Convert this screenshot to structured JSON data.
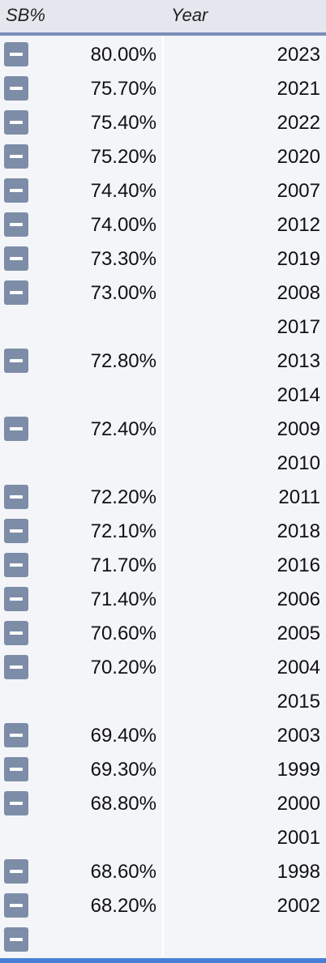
{
  "header": {
    "col_sb": "SB%",
    "col_year": "Year"
  },
  "rows": [
    {
      "pct": "80.00%",
      "year": "2023",
      "button": true
    },
    {
      "pct": "75.70%",
      "year": "2021",
      "button": true
    },
    {
      "pct": "75.40%",
      "year": "2022",
      "button": true
    },
    {
      "pct": "75.20%",
      "year": "2020",
      "button": true
    },
    {
      "pct": "74.40%",
      "year": "2007",
      "button": true
    },
    {
      "pct": "74.00%",
      "year": "2012",
      "button": true
    },
    {
      "pct": "73.30%",
      "year": "2019",
      "button": true
    },
    {
      "pct": "73.00%",
      "year": "2008",
      "button": true
    },
    {
      "pct": "",
      "year": "2017",
      "button": false
    },
    {
      "pct": "72.80%",
      "year": "2013",
      "button": true
    },
    {
      "pct": "",
      "year": "2014",
      "button": false
    },
    {
      "pct": "72.40%",
      "year": "2009",
      "button": true
    },
    {
      "pct": "",
      "year": "2010",
      "button": false
    },
    {
      "pct": "72.20%",
      "year": "2011",
      "button": true
    },
    {
      "pct": "72.10%",
      "year": "2018",
      "button": true
    },
    {
      "pct": "71.70%",
      "year": "2016",
      "button": true
    },
    {
      "pct": "71.40%",
      "year": "2006",
      "button": true
    },
    {
      "pct": "70.60%",
      "year": "2005",
      "button": true
    },
    {
      "pct": "70.20%",
      "year": "2004",
      "button": true
    },
    {
      "pct": "",
      "year": "2015",
      "button": false
    },
    {
      "pct": "69.40%",
      "year": "2003",
      "button": true
    },
    {
      "pct": "69.30%",
      "year": "1999",
      "button": true
    },
    {
      "pct": "68.80%",
      "year": "2000",
      "button": true
    },
    {
      "pct": "",
      "year": "2001",
      "button": false
    },
    {
      "pct": "68.60%",
      "year": "1998",
      "button": true
    },
    {
      "pct": "68.20%",
      "year": "2002",
      "button": true
    },
    {
      "pct": "",
      "year": "",
      "button": true
    }
  ],
  "icons": {
    "row_button": "minus-icon"
  },
  "colors": {
    "button": "#7d8da8",
    "header_bg": "#e4e7ee",
    "header_border": "#7a8fb8",
    "footer_accent": "#4a7fd8"
  }
}
